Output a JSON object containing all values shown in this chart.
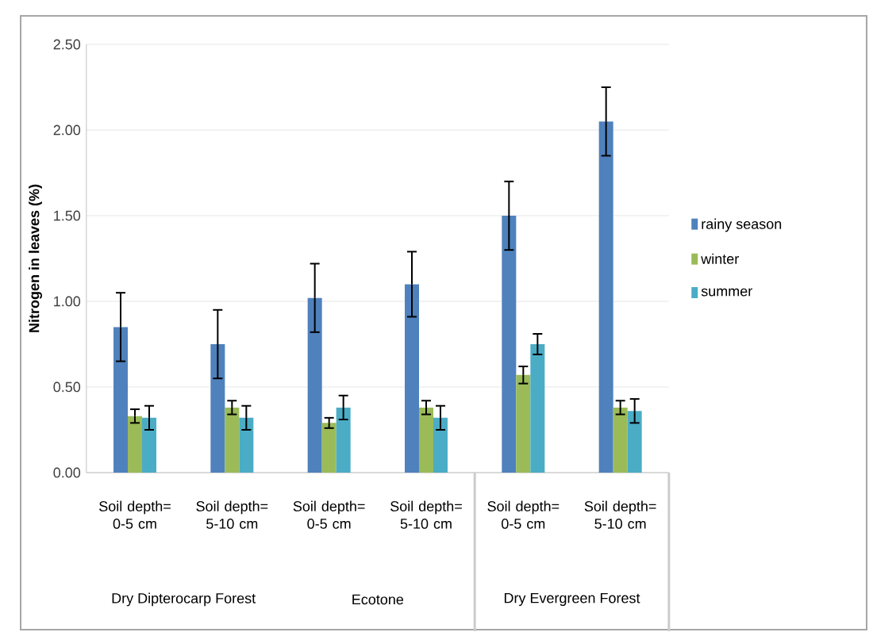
{
  "chart_data": {
    "type": "bar",
    "ylabel": "Nitrogen in leaves (%)",
    "categories": [
      "Soil depth= 0-5 cm",
      "Soil depth= 5-10 cm",
      "Soil depth= 0-5 cm",
      "Soil depth= 5-10 cm",
      "Soil depth= 0-5 cm",
      "Soil depth= 5-10 cm"
    ],
    "series": [
      {
        "name": "rainy season",
        "color": "#4f81bd",
        "values": [
          0.85,
          0.75,
          1.02,
          1.1,
          1.5,
          2.05
        ],
        "errors": [
          0.2,
          0.2,
          0.2,
          0.19,
          0.2,
          0.2
        ]
      },
      {
        "name": "winter",
        "color": "#9bbb59",
        "values": [
          0.33,
          0.38,
          0.29,
          0.38,
          0.57,
          0.38
        ],
        "errors": [
          0.04,
          0.04,
          0.03,
          0.04,
          0.05,
          0.04
        ]
      },
      {
        "name": "summer",
        "color": "#4bacc6",
        "values": [
          0.32,
          0.32,
          0.38,
          0.32,
          0.75,
          0.36
        ],
        "errors": [
          0.07,
          0.07,
          0.07,
          0.07,
          0.06,
          0.07
        ]
      }
    ],
    "annotations": [
      "Dry Dipterocarp Forest",
      "Ecotone",
      "Dry Evergreen Forest"
    ],
    "ylim": [
      0,
      2.5
    ],
    "yticks": [
      {
        "value": 0,
        "label": "0.00"
      },
      {
        "value": 0.5,
        "label": "0.50"
      },
      {
        "value": 1,
        "label": "1.00"
      },
      {
        "value": 1.5,
        "label": "1.50"
      },
      {
        "value": 2,
        "label": "2.00"
      },
      {
        "value": 2.5,
        "label": "2.50"
      }
    ],
    "grid": "y",
    "legend": "right"
  }
}
